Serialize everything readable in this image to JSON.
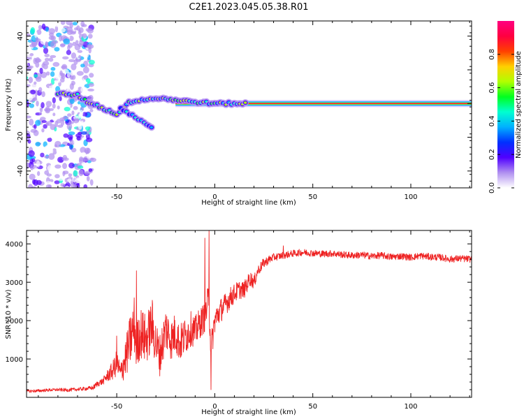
{
  "figure": {
    "title": "C2E1.2023.045.05.38.R01"
  },
  "chart_data": [
    {
      "type": "heatmap",
      "xlabel": "Height of straight line (km)",
      "ylabel": "Frequency (Hz)",
      "xlim": [
        -96,
        131
      ],
      "ylim": [
        -50,
        49
      ],
      "x_ticks": [
        -50,
        0,
        50,
        100
      ],
      "x_tick_labels": [
        "-50",
        "0",
        "50",
        "100"
      ],
      "y_ticks": [
        -40,
        -20,
        0,
        20,
        40
      ],
      "y_tick_labels": [
        "-40",
        "-20",
        "0",
        "20",
        "40"
      ],
      "colorbar": {
        "label": "Normalized spectral amplitude",
        "range": [
          0,
          1
        ],
        "ticks": [
          0.0,
          0.2,
          0.4,
          0.6,
          0.8
        ],
        "tick_labels": [
          "0.0",
          "0.2",
          "0.4",
          "0.6",
          "0.8"
        ],
        "colormap": [
          "#ffffff",
          "#b090f0",
          "#5000ff",
          "#0030ff",
          "#00b0ff",
          "#00ffd0",
          "#00ff20",
          "#b0ff00",
          "#ffd000",
          "#ff4000",
          "#ff0040",
          "#ff0080"
        ]
      },
      "features": [
        {
          "name": "noise",
          "x_range": [
            -96,
            -62
          ],
          "y_range": [
            -50,
            49
          ],
          "amplitude": 0.1
        },
        {
          "name": "carrier",
          "x_range": [
            -20,
            131
          ],
          "y_center": 0,
          "amplitude": 0.9
        },
        {
          "name": "trace",
          "points": [
            [
              -80,
              6
            ],
            [
              -70,
              5
            ],
            [
              -65,
              1
            ],
            [
              -60,
              -1
            ],
            [
              -55,
              -4
            ],
            [
              -50,
              -6
            ],
            [
              -47,
              -4
            ],
            [
              -45,
              0
            ],
            [
              -40,
              2
            ],
            [
              -30,
              3
            ],
            [
              -25,
              3
            ],
            [
              -20,
              2
            ],
            [
              -10,
              1
            ],
            [
              0,
              0
            ],
            [
              10,
              0
            ],
            [
              17,
              0
            ]
          ],
          "amplitude": 0.55
        },
        {
          "name": "branch",
          "points": [
            [
              -48,
              -3
            ],
            [
              -42,
              -7
            ],
            [
              -36,
              -11
            ],
            [
              -31,
              -15
            ]
          ],
          "amplitude": 0.4
        }
      ]
    },
    {
      "type": "line",
      "xlabel": "Height of straight line (km)",
      "ylabel": "SNR (10 * v/v)",
      "xlim": [
        -96,
        131
      ],
      "ylim": [
        0,
        4350
      ],
      "x_ticks": [
        -50,
        0,
        50,
        100
      ],
      "x_tick_labels": [
        "-50",
        "0",
        "50",
        "100"
      ],
      "y_ticks": [
        1000,
        2000,
        3000,
        4000
      ],
      "y_tick_labels": [
        "1000",
        "2000",
        "3000",
        "4000"
      ],
      "color": "#ee2222",
      "x": [
        -96,
        -90,
        -85,
        -80,
        -75,
        -70,
        -65,
        -62,
        -60,
        -57,
        -55,
        -52,
        -50,
        -48,
        -47,
        -45,
        -43,
        -41,
        -40,
        -38,
        -35,
        -32,
        -30,
        -28,
        -25,
        -22,
        -20,
        -18,
        -15,
        -12,
        -10,
        -8,
        -5,
        -3,
        -2,
        0,
        2,
        5,
        8,
        10,
        12,
        15,
        18,
        20,
        22,
        25,
        28,
        30,
        35,
        40,
        45,
        50,
        55,
        60,
        65,
        70,
        75,
        80,
        85,
        90,
        95,
        100,
        105,
        110,
        115,
        120,
        125,
        131
      ],
      "y": [
        160,
        170,
        190,
        200,
        190,
        210,
        230,
        250,
        350,
        420,
        550,
        700,
        900,
        600,
        800,
        1100,
        1500,
        1900,
        1300,
        1700,
        1500,
        1900,
        1400,
        1100,
        1800,
        1500,
        1700,
        1400,
        1600,
        1800,
        1700,
        1900,
        2100,
        2600,
        1200,
        2000,
        2200,
        2400,
        2600,
        2700,
        2800,
        2800,
        3100,
        3000,
        3300,
        3500,
        3600,
        3650,
        3700,
        3750,
        3780,
        3760,
        3740,
        3750,
        3720,
        3700,
        3710,
        3680,
        3700,
        3660,
        3680,
        3650,
        3690,
        3660,
        3650,
        3600,
        3620,
        3600
      ],
      "noise_amplitude": [
        40,
        40,
        40,
        40,
        45,
        45,
        50,
        60,
        80,
        90,
        150,
        250,
        350,
        300,
        400,
        550,
        700,
        800,
        600,
        700,
        650,
        700,
        600,
        550,
        600,
        550,
        550,
        500,
        500,
        450,
        420,
        400,
        400,
        450,
        400,
        350,
        330,
        300,
        280,
        260,
        240,
        230,
        200,
        180,
        150,
        130,
        110,
        100,
        90,
        90,
        90,
        90,
        90,
        90,
        90,
        90,
        90,
        90,
        90,
        90,
        90,
        90,
        90,
        90,
        90,
        90,
        90,
        90
      ],
      "spikes": [
        [
          -50,
          1600
        ],
        [
          -40,
          3300
        ],
        [
          -5,
          4150
        ],
        [
          -3,
          4350
        ],
        [
          -2,
          200
        ],
        [
          35,
          3950
        ]
      ]
    }
  ]
}
